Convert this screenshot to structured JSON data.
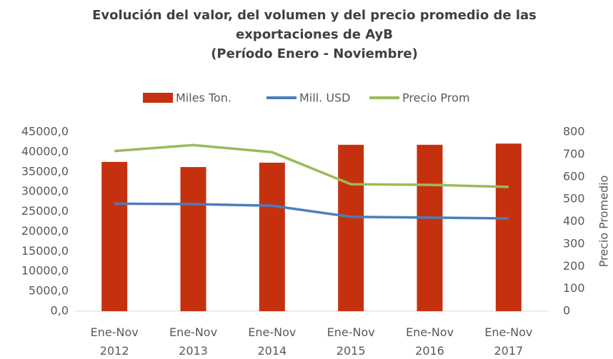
{
  "chart_data": {
    "type": "bar-line",
    "title": [
      "Evolución del valor, del volumen y del precio promedio de las",
      "exportaciones de AyB",
      "(Período Enero - Noviembre)"
    ],
    "categories": [
      "Ene-Nov 2012",
      "Ene-Nov 2013",
      "Ene-Nov 2014",
      "Ene-Nov 2015",
      "Ene-Nov 2016",
      "Ene-Nov 2017"
    ],
    "series": [
      {
        "name": "Miles Ton.",
        "type": "bar",
        "color": "#c5310f",
        "values": [
          37500,
          36200,
          37300,
          41800,
          41800,
          42100
        ]
      },
      {
        "name": "Mill. USD",
        "type": "line",
        "color": "#4a7ebb",
        "values": [
          27000,
          26900,
          26500,
          23700,
          23500,
          23300
        ]
      },
      {
        "name": "Precio Prom",
        "type": "line",
        "color": "#9bbb59",
        "axis": "y2",
        "values": [
          715,
          742,
          710,
          567,
          564,
          555
        ]
      }
    ],
    "ylim": [
      0,
      45000
    ],
    "yticks": [
      {
        "value": 0,
        "label": "0,0"
      },
      {
        "value": 5000,
        "label": "5000,0"
      },
      {
        "value": 10000,
        "label": "10000,0"
      },
      {
        "value": 15000,
        "label": "15000,0"
      },
      {
        "value": 20000,
        "label": "20000,0"
      },
      {
        "value": 25000,
        "label": "25000,0"
      },
      {
        "value": 30000,
        "label": "30000,0"
      },
      {
        "value": 35000,
        "label": "35000,0"
      },
      {
        "value": 40000,
        "label": "40000,0"
      },
      {
        "value": 45000,
        "label": "45000,0"
      }
    ],
    "y2lim": [
      0,
      800
    ],
    "y2ticks": [
      0,
      100,
      200,
      300,
      400,
      500,
      600,
      700,
      800
    ],
    "y2label": "Precio Promedio",
    "legend": "top"
  }
}
